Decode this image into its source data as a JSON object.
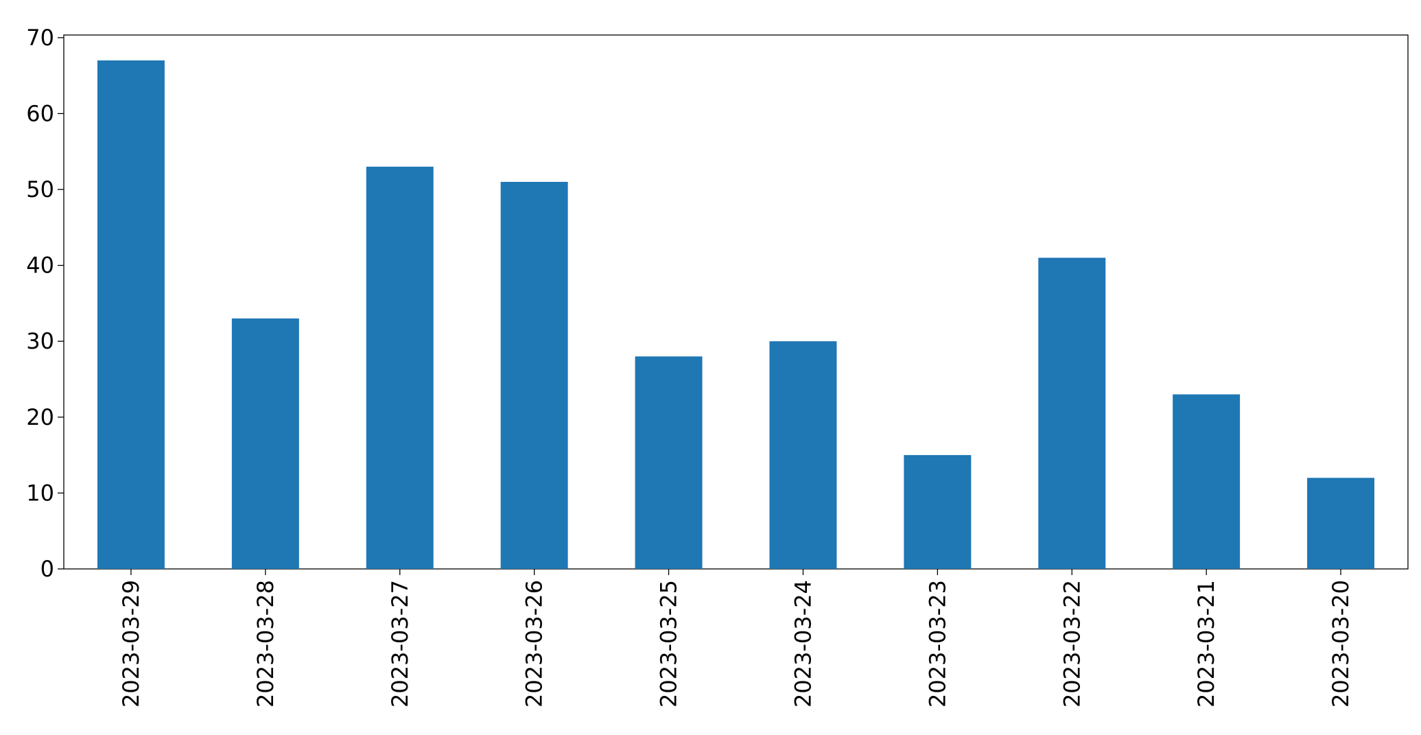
{
  "chart_data": {
    "type": "bar",
    "categories": [
      "2023-03-29",
      "2023-03-28",
      "2023-03-27",
      "2023-03-26",
      "2023-03-25",
      "2023-03-24",
      "2023-03-23",
      "2023-03-22",
      "2023-03-21",
      "2023-03-20"
    ],
    "values": [
      67,
      33,
      53,
      51,
      28,
      30,
      15,
      41,
      23,
      12
    ],
    "color": "#1f77b4",
    "ylim": [
      0,
      70.35
    ],
    "yticks": [
      0,
      10,
      20,
      30,
      40,
      50,
      60,
      70
    ],
    "grid": false
  }
}
